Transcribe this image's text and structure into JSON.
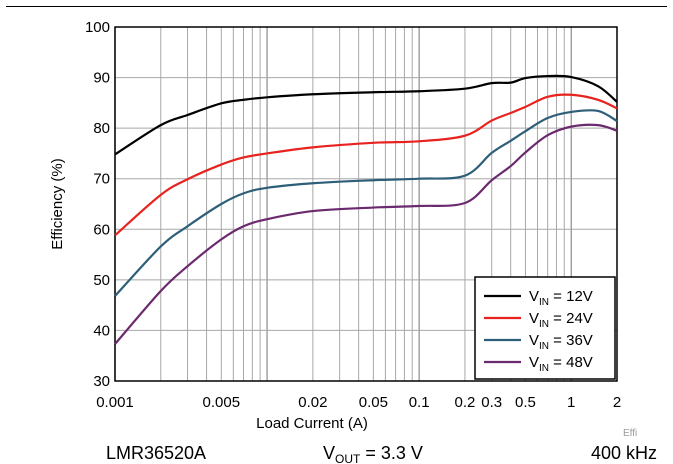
{
  "chart_data": {
    "type": "line",
    "x_scale": "log",
    "xlim": [
      0.001,
      2
    ],
    "ylim": [
      30,
      100
    ],
    "xlabel": "Load Current (A)",
    "ylabel": "Efficiency (%)",
    "grid": true,
    "legend_placement": "bottom-right",
    "x_ticks": [
      {
        "value": 0.001,
        "label": "0.001"
      },
      {
        "value": 0.005,
        "label": "0.005"
      },
      {
        "value": 0.02,
        "label": "0.02"
      },
      {
        "value": 0.05,
        "label": "0.05"
      },
      {
        "value": 0.1,
        "label": "0.1"
      },
      {
        "value": 0.2,
        "label": "0.2"
      },
      {
        "value": 0.3,
        "label": "0.3"
      },
      {
        "value": 0.5,
        "label": "0.5"
      },
      {
        "value": 1,
        "label": "1"
      },
      {
        "value": 2,
        "label": "2"
      }
    ],
    "y_ticks": [
      30,
      40,
      50,
      60,
      70,
      80,
      90,
      100
    ],
    "series": [
      {
        "name_main": "V",
        "name_sub": "IN",
        "name_rest": " = 12V",
        "color": "#000000",
        "x": [
          0.001,
          0.002,
          0.003,
          0.005,
          0.007,
          0.01,
          0.02,
          0.05,
          0.1,
          0.2,
          0.3,
          0.4,
          0.5,
          0.7,
          1,
          1.5,
          2
        ],
        "y": [
          74.8,
          80.6,
          82.6,
          84.9,
          85.6,
          86.1,
          86.7,
          87.1,
          87.3,
          87.8,
          88.9,
          89.0,
          89.9,
          90.3,
          90.1,
          88.3,
          85.2
        ]
      },
      {
        "name_main": "V",
        "name_sub": "IN",
        "name_rest": " = 24V",
        "color": "#e8221e",
        "x": [
          0.001,
          0.002,
          0.003,
          0.005,
          0.007,
          0.01,
          0.02,
          0.05,
          0.1,
          0.2,
          0.3,
          0.4,
          0.5,
          0.7,
          1,
          1.5,
          2
        ],
        "y": [
          58.8,
          66.8,
          69.9,
          72.8,
          74.2,
          75.0,
          76.2,
          77.1,
          77.4,
          78.5,
          81.5,
          83.0,
          84.2,
          86.2,
          86.6,
          85.6,
          83.9
        ]
      },
      {
        "name_main": "V",
        "name_sub": "IN",
        "name_rest": " = 36V",
        "color": "#2e5f78",
        "x": [
          0.001,
          0.002,
          0.003,
          0.005,
          0.007,
          0.01,
          0.02,
          0.05,
          0.1,
          0.2,
          0.3,
          0.4,
          0.5,
          0.7,
          1,
          1.5,
          2
        ],
        "y": [
          46.8,
          56.6,
          60.6,
          65.0,
          67.1,
          68.2,
          69.1,
          69.7,
          70.0,
          70.6,
          75.1,
          77.5,
          79.4,
          82.0,
          83.2,
          83.4,
          81.4
        ]
      },
      {
        "name_main": "V",
        "name_sub": "IN",
        "name_rest": " = 48V",
        "color": "#6b2a6e",
        "x": [
          0.001,
          0.002,
          0.003,
          0.005,
          0.007,
          0.01,
          0.02,
          0.05,
          0.1,
          0.2,
          0.3,
          0.4,
          0.5,
          0.7,
          1,
          1.5,
          2
        ],
        "y": [
          37.3,
          47.8,
          52.7,
          58.0,
          60.6,
          62.0,
          63.6,
          64.3,
          64.6,
          65.2,
          69.7,
          72.5,
          75.2,
          78.6,
          80.3,
          80.6,
          79.5
        ]
      }
    ]
  },
  "footer": {
    "device": "LMR36520A",
    "vout_main": "V",
    "vout_sub": "OUT",
    "vout_rest": " = 3.3 V",
    "frequency": "400 kHz"
  },
  "tag": "Effi"
}
